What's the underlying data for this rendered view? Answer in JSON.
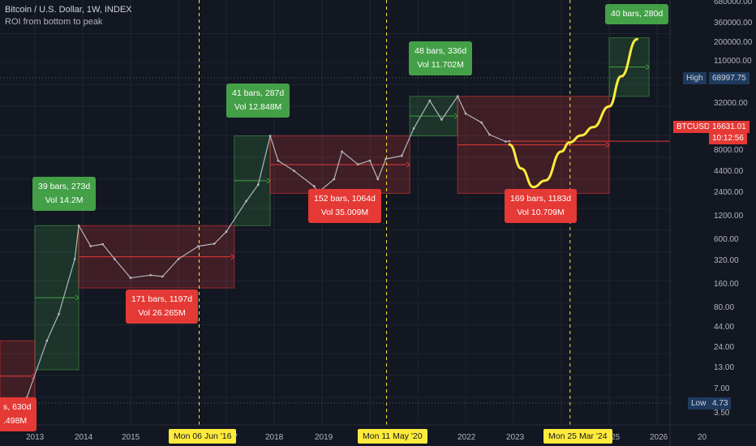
{
  "header": {
    "title": "Bitcoin / U.S. Dollar, 1W, INDEX",
    "subtitle": "ROI from bottom to peak"
  },
  "price_axis": {
    "ticks": [
      "680000.00",
      "360000.00",
      "200000.00",
      "110000.00",
      "32000.00",
      "8000.00",
      "4400.00",
      "2400.00",
      "1200.00",
      "600.00",
      "320.00",
      "160.00",
      "80.00",
      "44.00",
      "24.00",
      "13.00",
      "7.00",
      "3.50"
    ],
    "high_label": "High",
    "high_value": "68997.75",
    "low_label": "Low",
    "low_value": "4.73",
    "symbol_label": "BTCUSD",
    "last_price": "16631.01",
    "countdown": "10:12:56"
  },
  "time_axis": {
    "years": [
      "2013",
      "2014",
      "2015",
      "17",
      "2018",
      "2019",
      "21",
      "2022",
      "2023",
      "2025",
      "2026",
      "20"
    ],
    "markers": [
      "Mon 06 Jun '16",
      "Mon 11 May '20",
      "Mon 25 Mar '24"
    ]
  },
  "annotations": [
    {
      "kind": "gain",
      "line1": "39 bars, 273d",
      "line2": "Vol 14.2M"
    },
    {
      "kind": "gain",
      "line1": "41 bars, 287d",
      "line2": "Vol 12.848M"
    },
    {
      "kind": "gain",
      "line1": "48 bars, 336d",
      "line2": "Vol 11.702M"
    },
    {
      "kind": "gain",
      "line1": "40 bars, 280d",
      "line2": ""
    },
    {
      "kind": "loss",
      "line1": "171 bars, 1197d",
      "line2": "Vol 26.265M"
    },
    {
      "kind": "loss",
      "line1": "152 bars, 1064d",
      "line2": "Vol 35.009M"
    },
    {
      "kind": "loss",
      "line1": "169 bars, 1183d",
      "line2": "Vol 10.709M"
    },
    {
      "kind": "loss",
      "line1": "s, 630d",
      "line2": ".498M"
    }
  ],
  "colors": {
    "background": "#131722",
    "gain": "#43a047",
    "loss": "#e53935",
    "projection": "#ffeb3b",
    "price_line": "#b2b5be"
  },
  "chart_data": {
    "type": "line",
    "title": "Bitcoin / U.S. Dollar, 1W, INDEX",
    "y_scale": "log",
    "ylim": [
      3,
      700000
    ],
    "x_ticks": [
      "2013",
      "2014",
      "2015",
      "2016",
      "2017",
      "2018",
      "2019",
      "2020",
      "2021",
      "2022",
      "2023",
      "2024",
      "2025",
      "2026"
    ],
    "series": [
      {
        "name": "BTCUSD",
        "x": [
          "2012-11",
          "2013-04",
          "2013-07",
          "2013-11",
          "2013-12",
          "2014-03",
          "2014-06",
          "2014-09",
          "2015-01",
          "2015-06",
          "2015-09",
          "2016-01",
          "2016-06",
          "2016-10",
          "2017-01",
          "2017-06",
          "2017-09",
          "2017-12",
          "2018-02",
          "2018-06",
          "2018-11",
          "2018-12",
          "2019-04",
          "2019-06",
          "2019-10",
          "2020-01",
          "2020-03",
          "2020-05",
          "2020-09",
          "2020-12",
          "2021-04",
          "2021-07",
          "2021-11",
          "2022-01",
          "2022-05",
          "2022-07",
          "2022-11",
          "2022-12"
        ],
        "y": [
          5,
          30,
          70,
          400,
          1150,
          600,
          640,
          400,
          220,
          240,
          230,
          400,
          600,
          650,
          950,
          2500,
          4200,
          19700,
          9000,
          6500,
          4000,
          3300,
          5000,
          12000,
          8000,
          9000,
          5000,
          9500,
          10500,
          25000,
          60000,
          33000,
          68997,
          40000,
          30000,
          20500,
          16500,
          16631
        ]
      },
      {
        "name": "",
        "x": [
          "2022-12",
          "2023-03",
          "2023-06",
          "2023-09",
          "2024-01",
          "2024-03",
          "2024-06",
          "2024-09",
          "2025-01",
          "2025-04",
          "2025-08"
        ],
        "y": [
          15000,
          7000,
          3900,
          4800,
          12000,
          16000,
          20000,
          26000,
          50000,
          130000,
          420000
        ]
      }
    ],
    "ranges": [
      {
        "kind": "gain",
        "start": "2013-01",
        "end": "2013-12",
        "low": 12,
        "high": 1150,
        "bars": 39,
        "days": 273,
        "volume": "14.2M"
      },
      {
        "kind": "loss",
        "start": "2013-12",
        "end": "2017-03",
        "low": 160,
        "high": 1150,
        "bars": 171,
        "days": 1197,
        "volume": "26.265M"
      },
      {
        "kind": "gain",
        "start": "2017-03",
        "end": "2017-12",
        "low": 1150,
        "high": 19700,
        "bars": 41,
        "days": 287,
        "volume": "12.848M"
      },
      {
        "kind": "loss",
        "start": "2017-12",
        "end": "2020-11",
        "low": 3200,
        "high": 19700,
        "bars": 152,
        "days": 1064,
        "volume": "35.009M"
      },
      {
        "kind": "gain",
        "start": "2020-11",
        "end": "2021-11",
        "low": 19700,
        "high": 68997,
        "bars": 48,
        "days": 336,
        "volume": "11.702M"
      },
      {
        "kind": "loss",
        "start": "2021-11",
        "end": "2025-01",
        "low": 3200,
        "high": 68997,
        "bars": 169,
        "days": 1183,
        "volume": "10.709M"
      },
      {
        "kind": "gain",
        "start": "2025-01",
        "end": "2025-11",
        "low": 68997,
        "high": 440000,
        "bars": 40,
        "days": 280,
        "volume": ""
      },
      {
        "kind": "loss",
        "start": "2011-06",
        "end": "2013-01",
        "low": 3.2,
        "high": 30,
        "bars": null,
        "days": 630,
        "volume": "...498M"
      }
    ]
  }
}
